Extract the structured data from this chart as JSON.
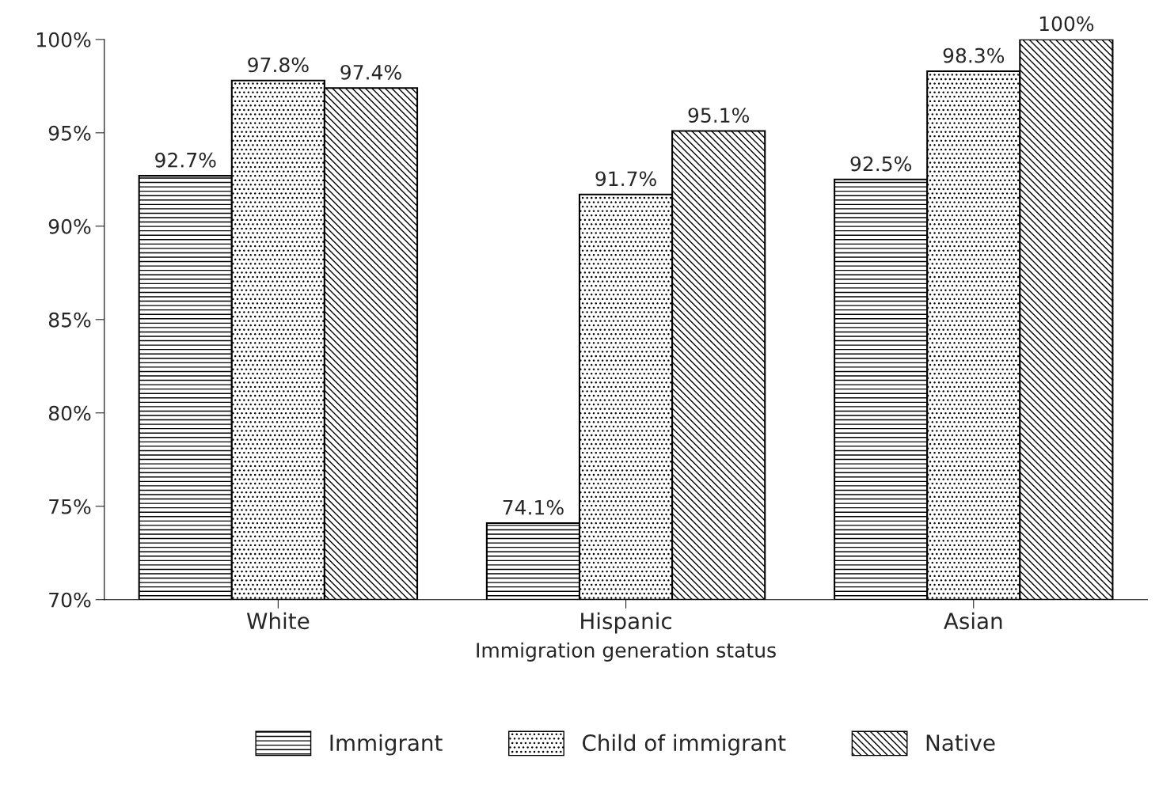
{
  "chart_data": {
    "type": "bar",
    "xlabel": "Immigration generation status",
    "categories": [
      "White",
      "Hispanic",
      "Asian"
    ],
    "series": [
      {
        "name": "Immigrant",
        "color": "#000000",
        "values": [
          92.7,
          74.1,
          92.5
        ],
        "value_labels": [
          "92.7%",
          "74.1%",
          "92.5%"
        ]
      },
      {
        "name": "Child of immigrant",
        "color": "#000000",
        "values": [
          97.8,
          91.7,
          98.3
        ],
        "value_labels": [
          "97.8%",
          "91.7%",
          "98.3%"
        ]
      },
      {
        "name": "Native",
        "color": "#000000",
        "values": [
          97.4,
          95.1,
          100
        ],
        "value_labels": [
          "97.4%",
          "95.1%",
          "100%"
        ]
      }
    ],
    "ylim": [
      70,
      100
    ],
    "yticks": [
      {
        "value": 70,
        "label": "70%"
      },
      {
        "value": 75,
        "label": "75%"
      },
      {
        "value": 80,
        "label": "80%"
      },
      {
        "value": 85,
        "label": "85%"
      },
      {
        "value": 90,
        "label": "90%"
      },
      {
        "value": 95,
        "label": "95%"
      },
      {
        "value": 100,
        "label": "100%"
      }
    ],
    "grid": false,
    "legend": "bottom"
  }
}
